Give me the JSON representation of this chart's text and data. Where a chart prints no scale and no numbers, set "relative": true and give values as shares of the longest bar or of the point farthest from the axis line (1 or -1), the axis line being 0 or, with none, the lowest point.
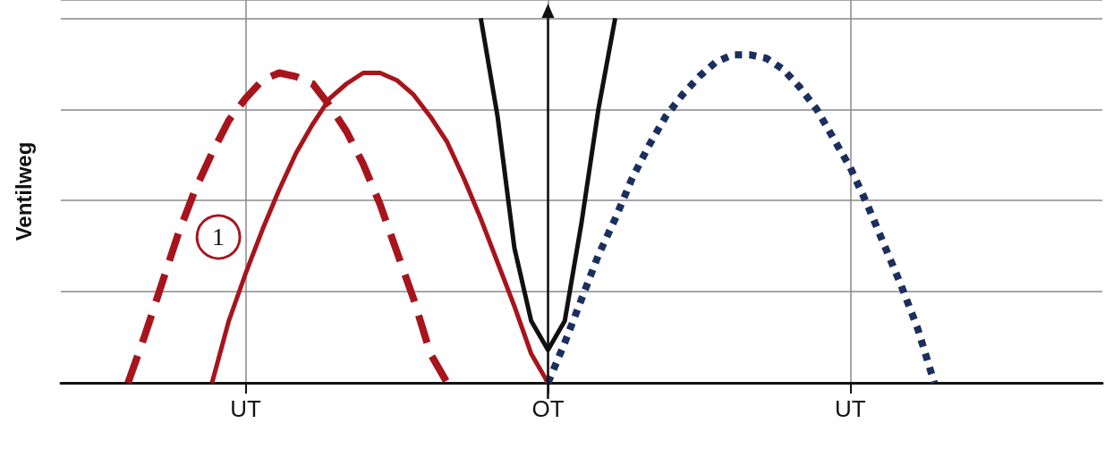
{
  "chart_data": {
    "type": "line",
    "ylabel": "Ventilweg",
    "relative": true,
    "categories": [
      null,
      null,
      null,
      null,
      null,
      null,
      null,
      null,
      null,
      null,
      null,
      "UT",
      null,
      null,
      null,
      null,
      null,
      null,
      null,
      null,
      null,
      null,
      null,
      null,
      null,
      null,
      null,
      null,
      null,
      "OT",
      null,
      null,
      null,
      null,
      null,
      null,
      null,
      null,
      null,
      null,
      null,
      null,
      null,
      null,
      null,
      null,
      null,
      "UT",
      null,
      null,
      null,
      null,
      null,
      null,
      null,
      null,
      null,
      null,
      null,
      null,
      null,
      null,
      null
    ],
    "grid": true,
    "series": [
      {
        "color": "#a8141c",
        "line_style": "dashed",
        "values": [
          null,
          null,
          null,
          null,
          0,
          0.13,
          0.27,
          0.41,
          0.53,
          0.63,
          0.72,
          0.78,
          0.83,
          0.85,
          0.84,
          0.82,
          0.76,
          0.69,
          0.6,
          0.49,
          0.36,
          0.23,
          0.08,
          0,
          null,
          null,
          null,
          null,
          null,
          null,
          null,
          null,
          null,
          null,
          null,
          null,
          null,
          null,
          null,
          null,
          null,
          null,
          null,
          null,
          null,
          null,
          null,
          null,
          null,
          null,
          null,
          null,
          null,
          null,
          null,
          null,
          null,
          null,
          null,
          null,
          null,
          null,
          null
        ]
      },
      {
        "color": "#a8141c",
        "line_style": "solid",
        "values": [
          null,
          null,
          null,
          null,
          null,
          null,
          null,
          null,
          null,
          0,
          0.17,
          0.3,
          0.42,
          0.53,
          0.63,
          0.71,
          0.78,
          0.82,
          0.85,
          0.85,
          0.83,
          0.79,
          0.73,
          0.66,
          0.56,
          0.45,
          0.33,
          0.21,
          0.08,
          0,
          null,
          null,
          null,
          null,
          null,
          null,
          null,
          null,
          null,
          null,
          null,
          null,
          null,
          null,
          null,
          null,
          null,
          null,
          null,
          null,
          null,
          null,
          null,
          null,
          null,
          null,
          null,
          null,
          null,
          null,
          null,
          null,
          null
        ]
      },
      {
        "color": "#111111",
        "line_style": "solid",
        "values": [
          null,
          null,
          null,
          null,
          null,
          null,
          null,
          null,
          null,
          null,
          null,
          null,
          null,
          null,
          null,
          null,
          null,
          null,
          null,
          null,
          null,
          null,
          null,
          null,
          null,
          1,
          0.73,
          0.37,
          0.17,
          0.09,
          0.17,
          0.44,
          0.75,
          1,
          null,
          null,
          null,
          null,
          null,
          null,
          null,
          null,
          null,
          null,
          null,
          null,
          null,
          null,
          null,
          null,
          null,
          null,
          null,
          null,
          null,
          null,
          null,
          null,
          null,
          null,
          null,
          null,
          null
        ]
      },
      {
        "color": "#1b2f5e",
        "line_style": "dotted",
        "values": [
          null,
          null,
          null,
          null,
          null,
          null,
          null,
          null,
          null,
          null,
          null,
          null,
          null,
          null,
          null,
          null,
          null,
          null,
          null,
          null,
          null,
          null,
          null,
          null,
          null,
          null,
          null,
          null,
          null,
          0,
          0.11,
          0.23,
          0.35,
          0.45,
          0.56,
          0.65,
          0.73,
          0.79,
          0.84,
          0.88,
          0.9,
          0.9,
          0.89,
          0.86,
          0.81,
          0.75,
          0.67,
          0.59,
          0.49,
          0.38,
          0.27,
          0.15,
          0,
          null,
          null,
          null,
          null,
          null,
          null,
          null,
          null,
          null,
          null
        ]
      }
    ],
    "annotations": [
      "1"
    ]
  }
}
